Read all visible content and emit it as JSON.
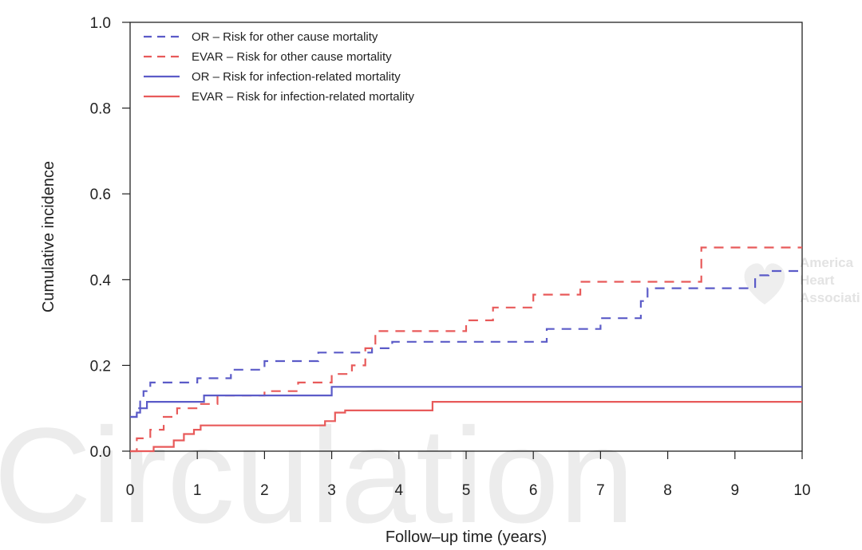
{
  "chart_data": {
    "type": "line",
    "step": true,
    "title": "",
    "xlabel": "Follow–up time (years)",
    "ylabel": "Cumulative incidence",
    "xlim": [
      0,
      10
    ],
    "ylim": [
      0,
      1
    ],
    "x_ticks": [
      0,
      1,
      2,
      3,
      4,
      5,
      6,
      7,
      8,
      9,
      10
    ],
    "y_ticks": [
      0.0,
      0.2,
      0.4,
      0.6,
      0.8,
      1.0
    ],
    "grid": false,
    "legend_position": "top-left",
    "series": [
      {
        "name": "OR – Risk for other cause mortality",
        "color": "#5b5bc8",
        "style": "dashed",
        "points": [
          [
            0,
            0.08
          ],
          [
            0.1,
            0.1
          ],
          [
            0.15,
            0.12
          ],
          [
            0.2,
            0.14
          ],
          [
            0.3,
            0.16
          ],
          [
            1.0,
            0.17
          ],
          [
            1.5,
            0.19
          ],
          [
            2.0,
            0.21
          ],
          [
            2.8,
            0.23
          ],
          [
            3.6,
            0.24
          ],
          [
            3.9,
            0.255
          ],
          [
            6.2,
            0.285
          ],
          [
            7.0,
            0.31
          ],
          [
            7.6,
            0.35
          ],
          [
            7.7,
            0.38
          ],
          [
            9.3,
            0.41
          ],
          [
            9.5,
            0.42
          ],
          [
            10,
            0.42
          ]
        ]
      },
      {
        "name": "EVAR – Risk for other cause mortality",
        "color": "#e85a5a",
        "style": "dashed",
        "points": [
          [
            0,
            0.0
          ],
          [
            0.1,
            0.03
          ],
          [
            0.3,
            0.05
          ],
          [
            0.5,
            0.08
          ],
          [
            0.7,
            0.1
          ],
          [
            1.0,
            0.11
          ],
          [
            1.3,
            0.13
          ],
          [
            2.0,
            0.14
          ],
          [
            2.5,
            0.16
          ],
          [
            3.0,
            0.18
          ],
          [
            3.3,
            0.2
          ],
          [
            3.5,
            0.24
          ],
          [
            3.65,
            0.28
          ],
          [
            5.0,
            0.305
          ],
          [
            5.4,
            0.335
          ],
          [
            6.0,
            0.365
          ],
          [
            6.7,
            0.395
          ],
          [
            8.5,
            0.475
          ],
          [
            10,
            0.475
          ]
        ]
      },
      {
        "name": "OR – Risk for infection-related mortality",
        "color": "#5b5bc8",
        "style": "solid",
        "points": [
          [
            0,
            0.08
          ],
          [
            0.1,
            0.09
          ],
          [
            0.15,
            0.1
          ],
          [
            0.25,
            0.115
          ],
          [
            1.1,
            0.13
          ],
          [
            3.0,
            0.15
          ],
          [
            10,
            0.15
          ]
        ]
      },
      {
        "name": "EVAR – Risk for infection-related mortality",
        "color": "#e85a5a",
        "style": "solid",
        "points": [
          [
            0,
            0.0
          ],
          [
            0.35,
            0.01
          ],
          [
            0.65,
            0.025
          ],
          [
            0.8,
            0.04
          ],
          [
            0.95,
            0.05
          ],
          [
            1.05,
            0.06
          ],
          [
            2.9,
            0.07
          ],
          [
            3.05,
            0.09
          ],
          [
            3.2,
            0.095
          ],
          [
            4.5,
            0.115
          ],
          [
            10,
            0.115
          ]
        ]
      }
    ]
  },
  "watermark": {
    "text": "Circulation",
    "logo_lines": [
      "America",
      "Heart",
      "Associati"
    ]
  }
}
